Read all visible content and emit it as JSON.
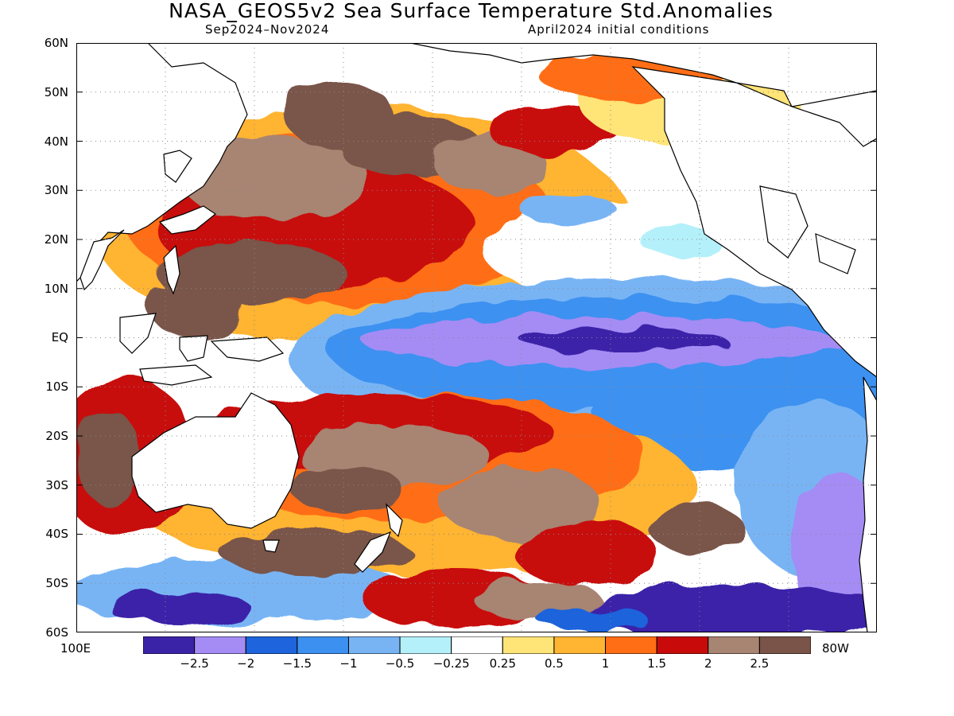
{
  "title": "NASA_GEOS5v2 Sea Surface Temperature Std.Anomalies",
  "subtitle_left": "Sep2024–Nov2024",
  "subtitle_right": "April2024 initial conditions",
  "lat_labels": [
    "60N",
    "50N",
    "40N",
    "30N",
    "20N",
    "10N",
    "EQ",
    "10S",
    "20S",
    "30S",
    "40S",
    "50S",
    "60S"
  ],
  "lon_labels": {
    "left": "100E",
    "right": "80W"
  },
  "colorbar": {
    "labels": [
      "-2.5",
      "-2",
      "-1.5",
      "-1",
      "-0.5",
      "-0.25",
      "0.25",
      "0.5",
      "1",
      "1.5",
      "2",
      "2.5"
    ],
    "colors": [
      "#3b23a8",
      "#a48cf4",
      "#1e64dc",
      "#3c91f0",
      "#78b4f4",
      "#b4f0fa",
      "#ffffff",
      "#ffe478",
      "#ffb432",
      "#ff6e14",
      "#c80a0a",
      "#a88472",
      "#7a5448"
    ]
  }
}
